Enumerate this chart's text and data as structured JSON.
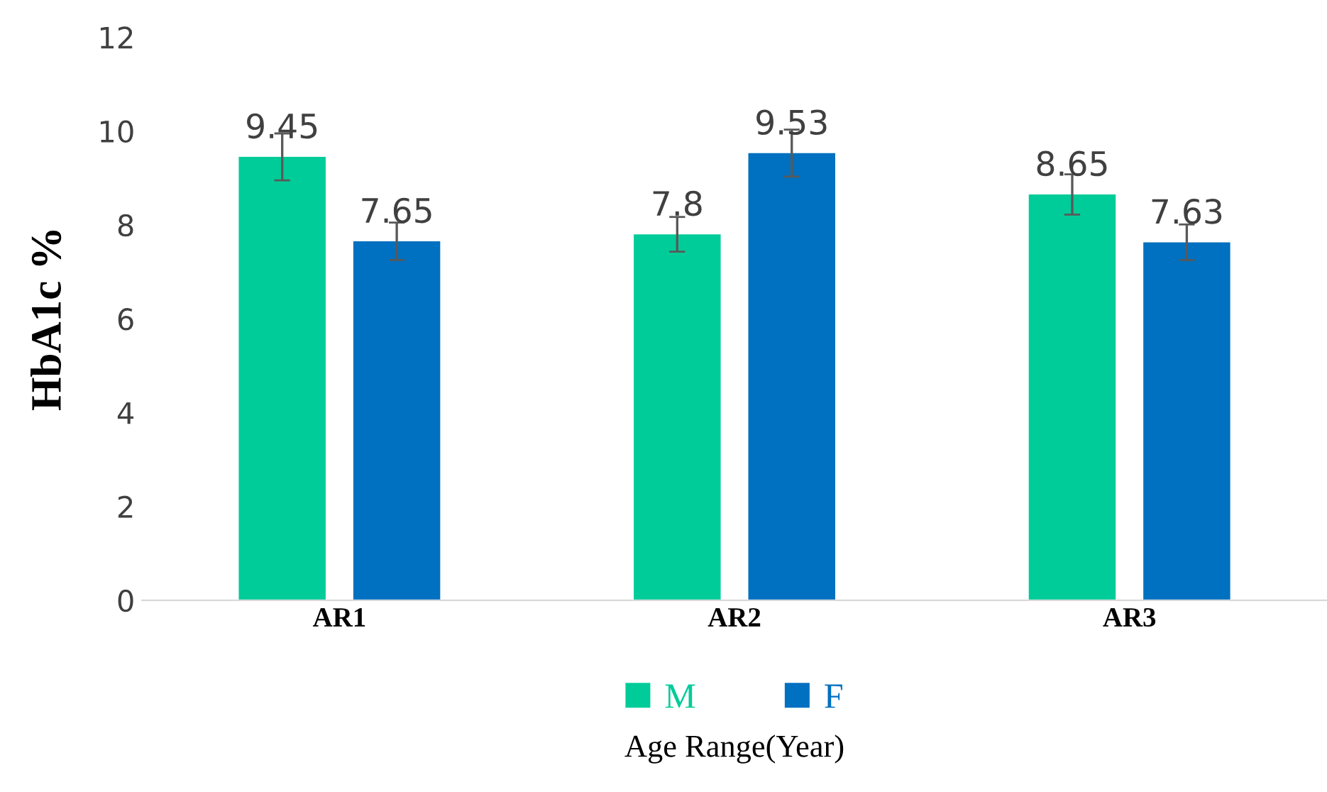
{
  "chart_data": {
    "type": "bar",
    "xlabel": "Age Range(Year)",
    "ylabel": "HbA1c %",
    "categories": [
      "AR1",
      "AR2",
      "AR3"
    ],
    "series": [
      {
        "name": "M",
        "color": "#00cc99",
        "values": [
          9.45,
          7.8,
          8.65
        ],
        "errors": [
          0.5,
          0.37,
          0.43
        ]
      },
      {
        "name": "F",
        "color": "#0070c0",
        "values": [
          7.65,
          9.53,
          7.63
        ],
        "errors": [
          0.4,
          0.5,
          0.38
        ]
      }
    ],
    "ylim": [
      0,
      12
    ],
    "yticks": [
      0,
      2,
      4,
      6,
      8,
      10,
      12
    ],
    "grid": false,
    "legend": "bottom",
    "data_labels": true
  }
}
